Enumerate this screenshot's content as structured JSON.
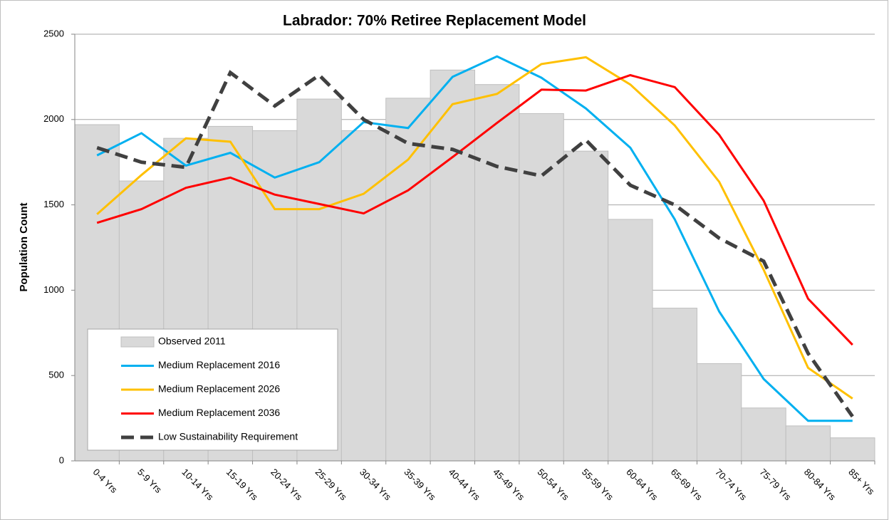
{
  "chart_data": {
    "type": "combo",
    "title": "Labrador: 70% Retiree Replacement Model",
    "y_label": "Population Count",
    "categories": [
      "0-4 Yrs",
      "5-9 Yrs",
      "10-14 Yrs",
      "15-19 Yrs",
      "20-24 Yrs",
      "25-29 Yrs",
      "30-34 Yrs",
      "35-39 Yrs",
      "40-44 Yrs",
      "45-49 Yrs",
      "50-54 Yrs",
      "55-59 Yrs",
      "60-64 Yrs",
      "65-69 Yrs",
      "70-74 Yrs",
      "75-79 Yrs",
      "80-84 Yrs",
      "85+ Yrs"
    ],
    "series": [
      {
        "name": "Observed 2011",
        "type": "bar",
        "color": "#d9d9d9",
        "values": [
          1970,
          1640,
          1890,
          1960,
          1935,
          2120,
          1935,
          2125,
          2290,
          2205,
          2035,
          1815,
          1415,
          895,
          570,
          310,
          205,
          135
        ]
      },
      {
        "name": "Medium Replacement 2016",
        "type": "line",
        "color": "#00b0f0",
        "values": [
          1790,
          1920,
          1730,
          1805,
          1660,
          1750,
          1985,
          1950,
          2250,
          2370,
          2245,
          2065,
          1835,
          1415,
          875,
          480,
          235,
          235
        ]
      },
      {
        "name": "Medium Replacement 2026",
        "type": "line",
        "color": "#ffc000",
        "values": [
          1445,
          1675,
          1890,
          1870,
          1475,
          1475,
          1565,
          1765,
          2090,
          2150,
          2325,
          2365,
          2205,
          1965,
          1635,
          1120,
          545,
          365
        ]
      },
      {
        "name": "Medium Replacement 2036",
        "type": "line",
        "color": "#ff0000",
        "values": [
          1395,
          1475,
          1600,
          1660,
          1560,
          1505,
          1450,
          1585,
          1780,
          1980,
          2175,
          2170,
          2260,
          2190,
          1910,
          1525,
          950,
          680
        ]
      },
      {
        "name": "Low Sustainability Requirement",
        "type": "line",
        "color": "#404040",
        "dash": "dashed",
        "values": [
          1835,
          1750,
          1720,
          2275,
          2080,
          2260,
          2000,
          1860,
          1825,
          1725,
          1670,
          1880,
          1615,
          1500,
          1305,
          1170,
          630,
          260
        ]
      }
    ],
    "ylim": [
      0,
      2500
    ],
    "yticks": [
      0,
      500,
      1000,
      1500,
      2000,
      2500
    ],
    "grid": true,
    "legend": "lower-left"
  }
}
